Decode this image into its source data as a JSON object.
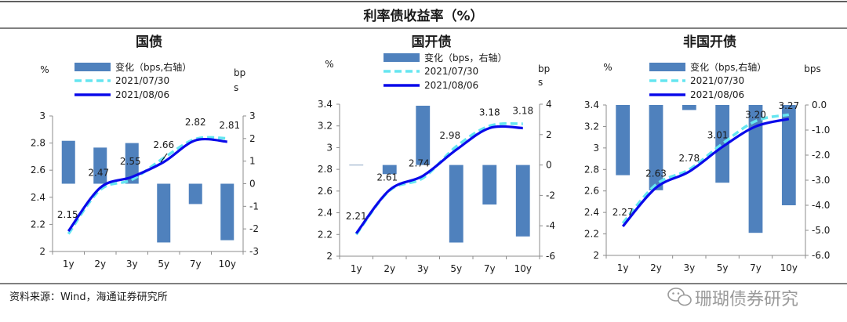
{
  "title": "利率债收益率（%）",
  "source": "资料来源：Wind，海通证券研究所",
  "watermark": "珊瑚债券研究",
  "colors": {
    "bar": "#4f81bd",
    "line_prev": "#66e6f0",
    "line_curr": "#0a0aea",
    "axis": "#8c8c8c",
    "rule": "#000000"
  },
  "icons": {
    "watermark": "wechat-icon"
  },
  "chart_data": [
    {
      "type": "bar+line",
      "title": "国债",
      "categories": [
        "1y",
        "2y",
        "3y",
        "5y",
        "7y",
        "10y"
      ],
      "y_unit": "%",
      "y2_unit": "bps",
      "ylim": [
        2,
        3
      ],
      "yticks": [
        2,
        2.2,
        2.4,
        2.6,
        2.8,
        3
      ],
      "ytick_labels": [
        "2",
        "2.2",
        "2.4",
        "2.6",
        "2.8",
        "3"
      ],
      "y2lim": [
        -3,
        3
      ],
      "y2ticks": [
        -3,
        -2,
        -1,
        0,
        1,
        2,
        3
      ],
      "y2tick_labels": [
        "-3",
        "-2",
        "-1",
        "0",
        "1",
        "2",
        "3"
      ],
      "legend": [
        "变化（bps,右轴）",
        "2021/07/30",
        "2021/08/06"
      ],
      "series": [
        {
          "name": "变化（bps,右轴）",
          "kind": "bar",
          "axis": "right",
          "values": [
            1.9,
            1.6,
            1.8,
            -2.6,
            -0.9,
            -2.5
          ]
        },
        {
          "name": "2021/07/30",
          "kind": "line",
          "axis": "left",
          "values": [
            2.13,
            2.455,
            2.53,
            2.69,
            2.83,
            2.835
          ]
        },
        {
          "name": "2021/08/06",
          "kind": "line",
          "axis": "left",
          "values": [
            2.15,
            2.47,
            2.55,
            2.66,
            2.82,
            2.81
          ]
        }
      ],
      "data_labels": [
        "2.15",
        "2.47",
        "2.55",
        "2.66",
        "2.82",
        "2.81"
      ]
    },
    {
      "type": "bar+line",
      "title": "国开债",
      "categories": [
        "1y",
        "2y",
        "3y",
        "5y",
        "7y",
        "10y"
      ],
      "y_unit": "%",
      "y2_unit": "bps",
      "ylim": [
        2,
        3.4
      ],
      "yticks": [
        2,
        2.2,
        2.4,
        2.6,
        2.8,
        3,
        3.2,
        3.4
      ],
      "ytick_labels": [
        "2",
        "2.2",
        "2.4",
        "2.6",
        "2.8",
        "3",
        "3.2",
        "3.4"
      ],
      "y2lim": [
        -6,
        4
      ],
      "y2ticks": [
        -6,
        -4,
        -2,
        0,
        2,
        4
      ],
      "y2tick_labels": [
        "-6",
        "-4",
        "-2",
        "0",
        "2",
        "4"
      ],
      "legend": [
        "变化（bps，右轴）",
        "2021/07/30",
        "2021/08/06"
      ],
      "series": [
        {
          "name": "变化（bps，右轴）",
          "kind": "bar",
          "axis": "right",
          "values": [
            0,
            -0.6,
            3.9,
            -5.1,
            -2.6,
            -4.7
          ]
        },
        {
          "name": "2021/07/30",
          "kind": "line",
          "axis": "left",
          "values": [
            2.2,
            2.605,
            2.72,
            3.01,
            3.2,
            3.22
          ]
        },
        {
          "name": "2021/08/06",
          "kind": "line",
          "axis": "left",
          "values": [
            2.21,
            2.61,
            2.74,
            2.98,
            3.18,
            3.18
          ]
        }
      ],
      "data_labels": [
        "2.21",
        "2.61",
        "2.74",
        "2.98",
        "3.18",
        "3.18"
      ]
    },
    {
      "type": "bar+line",
      "title": "非国开债",
      "categories": [
        "1y",
        "2y",
        "3y",
        "5y",
        "7y",
        "10y"
      ],
      "y_unit": "%",
      "y2_unit": "bps",
      "ylim": [
        2,
        3.4
      ],
      "yticks": [
        2,
        2.2,
        2.4,
        2.6,
        2.8,
        3,
        3.2,
        3.4
      ],
      "ytick_labels": [
        "2",
        "2.2",
        "2.4",
        "2.6",
        "2.8",
        "3",
        "3.2",
        "3.4"
      ],
      "y2lim": [
        -6,
        0
      ],
      "y2ticks": [
        -6,
        -5,
        -4,
        -3,
        -2,
        -1,
        0
      ],
      "y2tick_labels": [
        "-6.0",
        "-5.0",
        "-4.0",
        "-3.0",
        "-2.0",
        "-1.0",
        "0.0"
      ],
      "legend": [
        "变化（bps,右轴）",
        "2021/07/30",
        "2021/08/06"
      ],
      "series": [
        {
          "name": "变化（bps,右轴）",
          "kind": "bar",
          "axis": "right",
          "values": [
            -2.8,
            -3.4,
            -0.2,
            -3.1,
            -5.1,
            -4.0
          ]
        },
        {
          "name": "2021/07/30",
          "kind": "line",
          "axis": "left",
          "values": [
            2.3,
            2.66,
            2.8,
            3.04,
            3.25,
            3.31
          ]
        },
        {
          "name": "2021/08/06",
          "kind": "line",
          "axis": "left",
          "values": [
            2.27,
            2.63,
            2.78,
            3.01,
            3.2,
            3.27
          ]
        }
      ],
      "data_labels": [
        "2.27",
        "2.63",
        "2.78",
        "3.01",
        "3.20",
        "3.27"
      ]
    }
  ]
}
